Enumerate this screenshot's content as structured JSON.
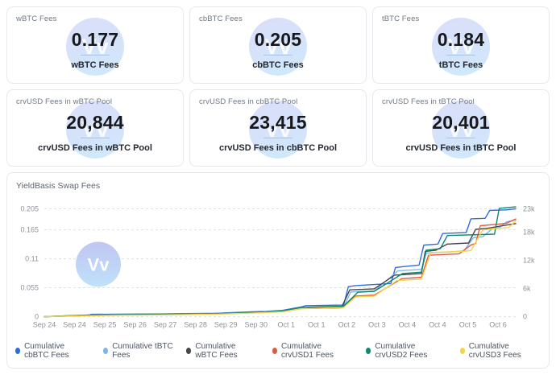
{
  "watermark_text": "Vv",
  "cards": [
    {
      "label": "wBTC Fees",
      "value": "0.177",
      "sublabel": "wBTC Fees"
    },
    {
      "label": "cbBTC Fees",
      "value": "0.205",
      "sublabel": "cbBTC Fees"
    },
    {
      "label": "tBTC Fees",
      "value": "0.184",
      "sublabel": "tBTC Fees"
    },
    {
      "label": "crvUSD Fees in wBTC Pool",
      "value": "20,844",
      "sublabel": "crvUSD Fees in wBTC Pool"
    },
    {
      "label": "crvUSD Fees in cbBTC Pool",
      "value": "23,415",
      "sublabel": "crvUSD Fees in cbBTC Pool"
    },
    {
      "label": "crvUSD Fees in tBTC Pool",
      "value": "20,401",
      "sublabel": "crvUSD Fees in tBTC Pool"
    }
  ],
  "chart": {
    "title": "YieldBasis Swap Fees"
  },
  "chart_data": {
    "type": "line",
    "title": "YieldBasis Swap Fees",
    "grid": "dashed-horizontal",
    "legend_position": "bottom",
    "x_labels": [
      "Sep 24",
      "Sep 24",
      "Sep 25",
      "Sep 26",
      "Sep 27",
      "Sep 28",
      "Sep 29",
      "Sep 30",
      "Oct 1",
      "Oct 1",
      "Oct 2",
      "Oct 3",
      "Oct 4",
      "Oct 4",
      "Oct 5",
      "Oct 6"
    ],
    "left_axis": {
      "max": 0.205,
      "ticks": [
        {
          "label": "0.205",
          "value": 0.205
        },
        {
          "label": "0.165",
          "value": 0.165
        },
        {
          "label": "0.11",
          "value": 0.11
        },
        {
          "label": "0.055",
          "value": 0.055
        },
        {
          "label": "0",
          "value": 0
        }
      ]
    },
    "right_axis": {
      "max": 23000,
      "ticks": [
        {
          "label": "23k",
          "value": 23000
        },
        {
          "label": "18k",
          "value": 18000
        },
        {
          "label": "12k",
          "value": 12000
        },
        {
          "label": "6k",
          "value": 6000
        },
        {
          "label": "0",
          "value": 0
        }
      ]
    },
    "gridline_color": "#e0e1e5",
    "axis_text_color": "#8c9197",
    "watermark_colors": [
      "#b7bcf2",
      "#b4ddf8"
    ],
    "series": [
      {
        "name": "Cumulative cbBTC Fees",
        "color": "#2f6bdf",
        "axis": "left",
        "final": 0.205,
        "points": [
          [
            0,
            0
          ],
          [
            9,
            0.002
          ],
          [
            10,
            0.0045
          ],
          [
            21,
            0.005
          ],
          [
            36,
            0.0065
          ],
          [
            43.5,
            0.009
          ],
          [
            47,
            0.01
          ],
          [
            50.5,
            0.012
          ],
          [
            54.5,
            0.0185
          ],
          [
            55.5,
            0.021
          ],
          [
            63.5,
            0.022
          ],
          [
            64.5,
            0.057
          ],
          [
            66,
            0.059
          ],
          [
            70,
            0.061
          ],
          [
            73.5,
            0.063
          ],
          [
            74.5,
            0.0935
          ],
          [
            76,
            0.095
          ],
          [
            79.5,
            0.098
          ],
          [
            80.5,
            0.136
          ],
          [
            83.5,
            0.138
          ],
          [
            84.5,
            0.158
          ],
          [
            89.5,
            0.16
          ],
          [
            90.5,
            0.186
          ],
          [
            93.5,
            0.187
          ],
          [
            94.5,
            0.202
          ],
          [
            98,
            0.203
          ],
          [
            100,
            0.205
          ]
        ]
      },
      {
        "name": "Cumulative tBTC Fees",
        "color": "#7eb6ea",
        "axis": "left",
        "final": 0.184,
        "points": [
          [
            0,
            0
          ],
          [
            10,
            0.0035
          ],
          [
            21,
            0.0045
          ],
          [
            36,
            0.006
          ],
          [
            43.5,
            0.008
          ],
          [
            50.5,
            0.011
          ],
          [
            54.5,
            0.016
          ],
          [
            63.5,
            0.018
          ],
          [
            65,
            0.047
          ],
          [
            70,
            0.049
          ],
          [
            75,
            0.087
          ],
          [
            80,
            0.09
          ],
          [
            81,
            0.121
          ],
          [
            86,
            0.123
          ],
          [
            89,
            0.125
          ],
          [
            91,
            0.15
          ],
          [
            93,
            0.152
          ],
          [
            95,
            0.167
          ],
          [
            96.5,
            0.169
          ],
          [
            98,
            0.18
          ],
          [
            100,
            0.184
          ]
        ]
      },
      {
        "name": "Cumulative wBTC Fees",
        "color": "#45454d",
        "axis": "left",
        "final": 0.177,
        "points": [
          [
            0,
            0
          ],
          [
            10,
            0.003
          ],
          [
            21,
            0.004
          ],
          [
            36,
            0.0055
          ],
          [
            43.5,
            0.0075
          ],
          [
            50.5,
            0.01
          ],
          [
            54.5,
            0.0155
          ],
          [
            63,
            0.017
          ],
          [
            64.8,
            0.051
          ],
          [
            70,
            0.053
          ],
          [
            74.3,
            0.079
          ],
          [
            80,
            0.082
          ],
          [
            80.8,
            0.124
          ],
          [
            83,
            0.126
          ],
          [
            85.5,
            0.138
          ],
          [
            90,
            0.14
          ],
          [
            91.5,
            0.166
          ],
          [
            94,
            0.168
          ],
          [
            100,
            0.177
          ]
        ]
      },
      {
        "name": "Cumulative crvUSD1 Fees",
        "color": "#e4573f",
        "axis": "right",
        "final": 20844,
        "points": [
          [
            0,
            0
          ],
          [
            10,
            280
          ],
          [
            21,
            380
          ],
          [
            36,
            560
          ],
          [
            43.5,
            800
          ],
          [
            50.5,
            1100
          ],
          [
            54.5,
            1800
          ],
          [
            56,
            2000
          ],
          [
            63.5,
            2150
          ],
          [
            66,
            4400
          ],
          [
            70,
            4600
          ],
          [
            75.8,
            8100
          ],
          [
            80,
            8400
          ],
          [
            81.5,
            13100
          ],
          [
            88,
            13400
          ],
          [
            90.5,
            15300
          ],
          [
            91.5,
            15600
          ],
          [
            92.5,
            19400
          ],
          [
            96,
            19700
          ],
          [
            98,
            19900
          ],
          [
            100,
            20844
          ]
        ]
      },
      {
        "name": "Cumulative crvUSD2 Fees",
        "color": "#0c8a6a",
        "axis": "right",
        "final": 23415,
        "points": [
          [
            0,
            0
          ],
          [
            10,
            320
          ],
          [
            21,
            420
          ],
          [
            36,
            620
          ],
          [
            43.5,
            860
          ],
          [
            50.5,
            1180
          ],
          [
            54.5,
            1950
          ],
          [
            63.5,
            2250
          ],
          [
            66.5,
            5200
          ],
          [
            70,
            5400
          ],
          [
            76,
            9200
          ],
          [
            80,
            9500
          ],
          [
            81,
            14200
          ],
          [
            84,
            14500
          ],
          [
            85.5,
            17300
          ],
          [
            95.5,
            17600
          ],
          [
            96.5,
            23100
          ],
          [
            98.5,
            23300
          ],
          [
            100,
            23415
          ]
        ]
      },
      {
        "name": "Cumulative crvUSD3 Fees",
        "color": "#f5d44a",
        "axis": "right",
        "final": 20401,
        "points": [
          [
            0,
            0
          ],
          [
            9,
            200
          ],
          [
            21,
            330
          ],
          [
            36,
            520
          ],
          [
            43.5,
            740
          ],
          [
            50.5,
            1020
          ],
          [
            54.5,
            1700
          ],
          [
            63.5,
            1950
          ],
          [
            66,
            4200
          ],
          [
            70,
            4400
          ],
          [
            74.8,
            7700
          ],
          [
            80,
            8000
          ],
          [
            82,
            13700
          ],
          [
            88.5,
            13900
          ],
          [
            90.5,
            14100
          ],
          [
            93,
            18500
          ],
          [
            96,
            18800
          ],
          [
            98.5,
            19000
          ],
          [
            100,
            20401
          ]
        ]
      }
    ]
  }
}
